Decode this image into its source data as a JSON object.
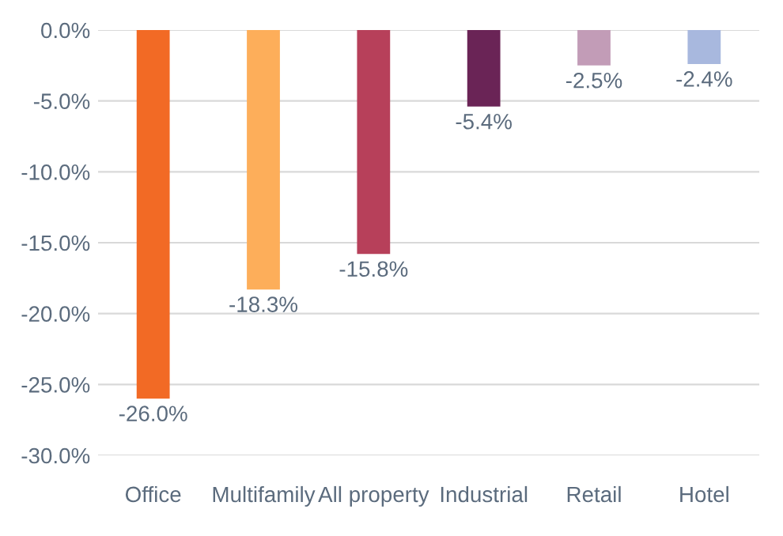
{
  "chart_data": {
    "type": "bar",
    "categories": [
      "Office",
      "Multifamily",
      "All property",
      "Industrial",
      "Retail",
      "Hotel"
    ],
    "values": [
      -26.0,
      -18.3,
      -15.8,
      -5.4,
      -2.5,
      -2.4
    ],
    "colors": [
      "#f26a25",
      "#fdae5a",
      "#b7405a",
      "#6a2456",
      "#c29cb7",
      "#a8b8de"
    ],
    "value_labels": [
      "-26.0%",
      "-18.3%",
      "-15.8%",
      "-5.4%",
      "-2.5%",
      "-2.4%"
    ],
    "ylim": [
      -30,
      0
    ],
    "yticks": [
      {
        "value": 0,
        "label": "0.0%"
      },
      {
        "value": -5,
        "label": "-5.0%"
      },
      {
        "value": -10,
        "label": "-10.0%"
      },
      {
        "value": -15,
        "label": "-15.0%"
      },
      {
        "value": -20,
        "label": "-20.0%"
      },
      {
        "value": -25,
        "label": "-25.0%"
      },
      {
        "value": -30,
        "label": "-30.0%"
      }
    ],
    "grid": "y"
  }
}
